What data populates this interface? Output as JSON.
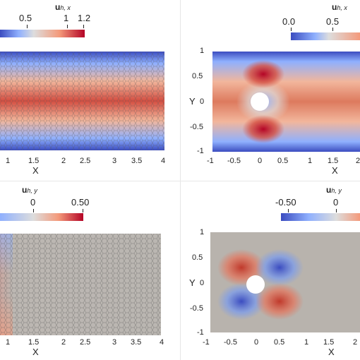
{
  "panels": {
    "top_left": {
      "colorbar_title_main": "u",
      "colorbar_title_sub": "h, x",
      "colorbar_labels": [
        "0.5",
        "1",
        "1.2"
      ],
      "x_ticks": [
        "1",
        "1.5",
        "2",
        "2.5",
        "3",
        "3.5",
        "4"
      ],
      "x_label": "X"
    },
    "top_right": {
      "colorbar_title_main": "u",
      "colorbar_title_sub": "h, x",
      "colorbar_labels": [
        "0.0",
        "0.5"
      ],
      "x_ticks": [
        "-1",
        "-0.5",
        "0",
        "0.5",
        "1",
        "1.5",
        "2"
      ],
      "y_ticks": [
        "1",
        "0.5",
        "0",
        "-0.5",
        "-1"
      ],
      "x_label": "X",
      "y_label": "Y"
    },
    "bottom_left": {
      "colorbar_title_main": "u",
      "colorbar_title_sub": "h, y",
      "colorbar_labels": [
        "0",
        "0.50"
      ],
      "x_ticks": [
        "1",
        "1.5",
        "2",
        "2.5",
        "3",
        "3.5",
        "4"
      ],
      "x_label": "X"
    },
    "bottom_right": {
      "colorbar_title_main": "u",
      "colorbar_title_sub": "h, y",
      "colorbar_labels": [
        "-0.50",
        "0"
      ],
      "x_ticks": [
        "-1",
        "-0.5",
        "0",
        "0.5",
        "1",
        "1.5",
        "2"
      ],
      "y_ticks": [
        "1",
        "0.5",
        "0",
        "-0.5",
        "-1"
      ],
      "x_label": "X",
      "y_label": "Y"
    }
  },
  "colors": {
    "blue": "#3b4cc0",
    "white": "#dddddd",
    "red": "#b40426",
    "neutral": "#b8b3ad"
  }
}
